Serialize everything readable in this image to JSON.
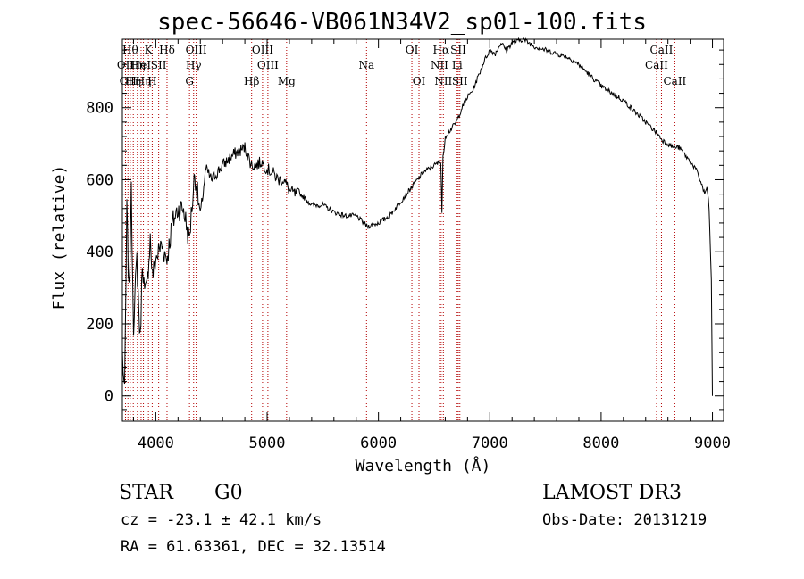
{
  "chart_data": {
    "type": "line",
    "title": "spec-56646-VB061N34V2_sp01-100.fits",
    "xlabel": "Wavelength (Å)",
    "ylabel": "Flux (relative)",
    "xlim": [
      3700,
      9100
    ],
    "ylim": [
      -70,
      990
    ],
    "xticks": [
      4000,
      5000,
      6000,
      7000,
      8000,
      9000
    ],
    "yticks": [
      0,
      200,
      400,
      600,
      800
    ],
    "grid": false,
    "series": [
      {
        "name": "flux",
        "x": [
          3700,
          3720,
          3740,
          3760,
          3780,
          3800,
          3830,
          3860,
          3880,
          3900,
          3920,
          3950,
          3970,
          4000,
          4050,
          4100,
          4150,
          4200,
          4250,
          4300,
          4350,
          4400,
          4450,
          4500,
          4600,
          4700,
          4800,
          4860,
          4900,
          4950,
          5000,
          5050,
          5100,
          5150,
          5200,
          5250,
          5300,
          5400,
          5500,
          5600,
          5700,
          5800,
          5900,
          6000,
          6100,
          6200,
          6300,
          6400,
          6500,
          6560,
          6570,
          6580,
          6600,
          6650,
          6700,
          6750,
          6800,
          6850,
          6900,
          6950,
          7000,
          7050,
          7100,
          7150,
          7200,
          7300,
          7400,
          7500,
          7600,
          7700,
          7800,
          7900,
          8000,
          8100,
          8200,
          8300,
          8400,
          8500,
          8550,
          8600,
          8650,
          8700,
          8750,
          8800,
          8850,
          8900,
          8930,
          8950,
          8970,
          8990,
          9000
        ],
        "values": [
          120,
          0,
          520,
          280,
          560,
          200,
          380,
          150,
          380,
          280,
          300,
          440,
          330,
          380,
          420,
          380,
          480,
          520,
          520,
          430,
          620,
          500,
          630,
          600,
          640,
          670,
          690,
          640,
          640,
          650,
          630,
          620,
          600,
          600,
          570,
          560,
          560,
          530,
          530,
          510,
          500,
          500,
          470,
          480,
          500,
          540,
          580,
          620,
          640,
          650,
          510,
          660,
          720,
          740,
          760,
          800,
          830,
          850,
          890,
          930,
          960,
          950,
          980,
          960,
          980,
          990,
          970,
          960,
          950,
          940,
          920,
          890,
          860,
          840,
          820,
          790,
          760,
          730,
          710,
          700,
          690,
          690,
          670,
          650,
          630,
          590,
          560,
          580,
          520,
          320,
          0
        ]
      }
    ],
    "lines": [
      {
        "x": 3728,
        "label": "OII",
        "row": 1
      },
      {
        "x": 3750,
        "label": "OII",
        "row": 2
      },
      {
        "x": 3771,
        "label": "Hθ",
        "row": 0
      },
      {
        "x": 3798,
        "label": "Hη",
        "row": 2
      },
      {
        "x": 3835,
        "label": "Hη",
        "row": 1
      },
      {
        "x": 3868,
        "label": "HeI",
        "row": 1
      },
      {
        "x": 3889,
        "label": "Hη",
        "row": 2
      },
      {
        "x": 3934,
        "label": "K",
        "row": 0
      },
      {
        "x": 3968,
        "label": "H",
        "row": 2
      },
      {
        "x": 4026,
        "label": "SII",
        "row": 1
      },
      {
        "x": 4101,
        "label": "Hδ",
        "row": 0
      },
      {
        "x": 4303,
        "label": "G",
        "row": 2
      },
      {
        "x": 4340,
        "label": "Hγ",
        "row": 1
      },
      {
        "x": 4363,
        "label": "OIII",
        "row": 0
      },
      {
        "x": 4861,
        "label": "Hβ",
        "row": 2
      },
      {
        "x": 4959,
        "label": "OIII",
        "row": 0
      },
      {
        "x": 5007,
        "label": "OIII",
        "row": 1
      },
      {
        "x": 5175,
        "label": "Mg",
        "row": 2
      },
      {
        "x": 5893,
        "label": "Na",
        "row": 1
      },
      {
        "x": 6300,
        "label": "OI",
        "row": 0
      },
      {
        "x": 6364,
        "label": "OI",
        "row": 2
      },
      {
        "x": 6548,
        "label": "NII",
        "row": 1
      },
      {
        "x": 6563,
        "label": "Hα",
        "row": 0
      },
      {
        "x": 6583,
        "label": "NII",
        "row": 2
      },
      {
        "x": 6707,
        "label": "Li",
        "row": 1
      },
      {
        "x": 6717,
        "label": "SII",
        "row": 0
      },
      {
        "x": 6731,
        "label": "SII",
        "row": 2
      },
      {
        "x": 8498,
        "label": "CaII",
        "row": 1
      },
      {
        "x": 8542,
        "label": "CaII",
        "row": 0
      },
      {
        "x": 8662,
        "label": "CaII",
        "row": 2
      }
    ]
  },
  "info": {
    "class": "STAR",
    "subclass": "G0",
    "survey": "LAMOST DR3",
    "cz": "cz = -23.1 ± 42.1 km/s",
    "obs_date": "Obs-Date: 20131219",
    "radec": "RA =  61.63361, DEC =  32.13514"
  },
  "colors": {
    "line_marker": "#b30000",
    "spectrum": "#000000"
  }
}
